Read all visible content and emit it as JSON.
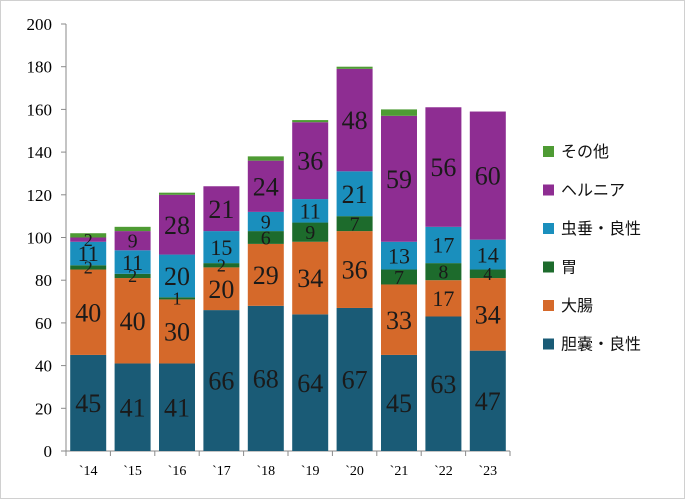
{
  "chart_data": {
    "type": "bar",
    "stacked": true,
    "categories": [
      "`14",
      "`15",
      "`16",
      "`17",
      "`18",
      "`19",
      "`20",
      "`21",
      "`22",
      "`23"
    ],
    "ylim": [
      0,
      200
    ],
    "yticks": [
      0,
      20,
      40,
      60,
      80,
      100,
      120,
      140,
      160,
      180,
      200
    ],
    "grid": false,
    "legend_position": "right",
    "series": [
      {
        "name": "胆嚢・良性",
        "color": "#1a5b76",
        "values": [
          45,
          41,
          41,
          66,
          68,
          64,
          67,
          45,
          63,
          47
        ],
        "labels": [
          "45",
          "41",
          "41",
          "66",
          "68",
          "64",
          "67",
          "45",
          "63",
          "47"
        ]
      },
      {
        "name": "大腸",
        "color": "#d5692a",
        "values": [
          40,
          40,
          30,
          20,
          29,
          34,
          36,
          33,
          17,
          34
        ],
        "labels": [
          "40",
          "40",
          "30",
          "20",
          "29",
          "34",
          "36",
          "33",
          "17",
          "34"
        ]
      },
      {
        "name": "胃",
        "color": "#1d6b2c",
        "values": [
          2,
          2,
          1,
          2,
          6,
          9,
          7,
          7,
          8,
          4
        ],
        "labels": [
          "2",
          "2",
          "1",
          "2",
          "6",
          "9",
          "7",
          "7",
          "8",
          "4"
        ]
      },
      {
        "name": "虫垂・良性",
        "color": "#1a8fbd",
        "values": [
          11,
          11,
          20,
          15,
          9,
          11,
          21,
          13,
          17,
          14
        ],
        "labels": [
          "11",
          "11",
          "20",
          "15",
          "9",
          "11",
          "21",
          "13",
          "17",
          "14"
        ]
      },
      {
        "name": "ヘルニア",
        "color": "#8e2d92",
        "values": [
          2,
          9,
          28,
          21,
          24,
          36,
          48,
          59,
          56,
          60
        ],
        "labels": [
          "2",
          "9",
          "28",
          "21",
          "24",
          "36",
          "48",
          "59",
          "56",
          "60"
        ]
      },
      {
        "name": "その他",
        "color": "#4e9b34",
        "values": [
          2,
          2,
          1,
          0,
          2,
          1,
          1,
          3,
          0,
          0
        ],
        "labels": []
      }
    ]
  }
}
